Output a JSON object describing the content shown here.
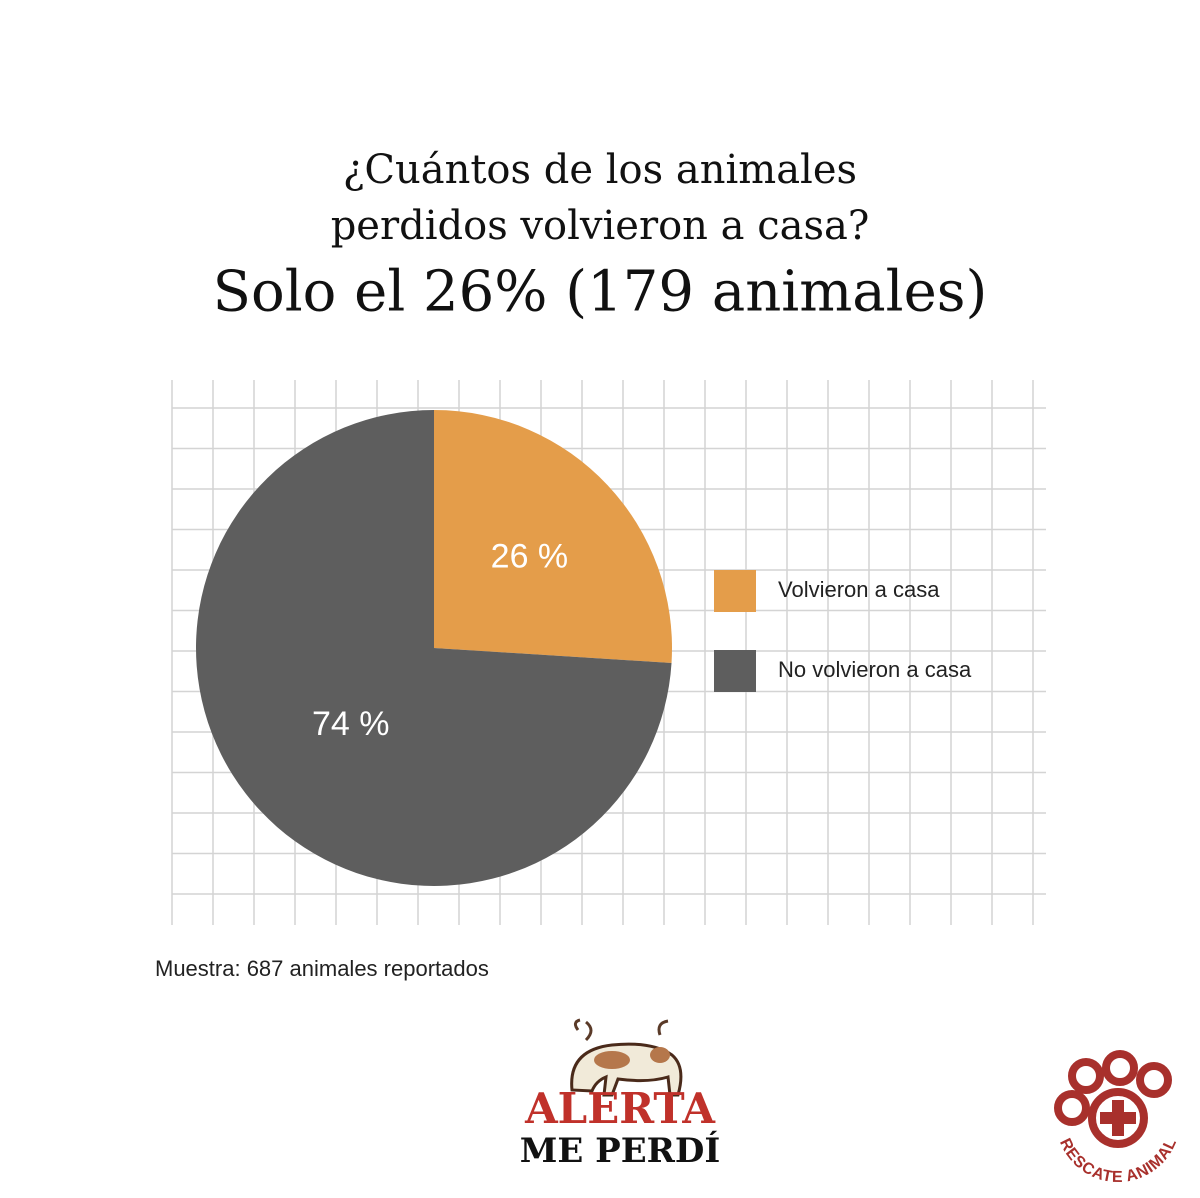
{
  "chart_data": {
    "type": "pie",
    "title": "¿Cuántos de los animales perdidos volvieron a casa?",
    "subtitle": "Solo el 26% (179 animales)",
    "categories": [
      "Volvieron a casa",
      "No volvieron a casa"
    ],
    "values": [
      26,
      74
    ],
    "value_labels": [
      "26 %",
      "74 %"
    ],
    "colors": [
      "#e49d4a",
      "#5e5e5e"
    ],
    "legend": "right",
    "note": "Muestra: 687 animales reportados"
  },
  "logos": {
    "alerta": [
      "ALERTA",
      "ME PERDÍ"
    ],
    "rescate": "RESCATE ANIMAL"
  }
}
